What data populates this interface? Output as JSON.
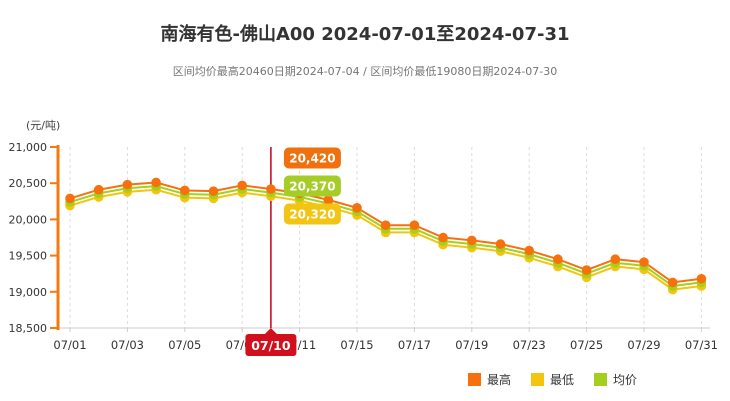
{
  "title": "南海有色-佛山A00 2024-07-01至2024-07-31",
  "subtitle": "区间均价最高20460日期2024-07-04 / 区间均价最低19080日期2024-07-30",
  "y_axis": {
    "unit_label": "(元/吨)",
    "tick_labels": [
      "21,000",
      "20,500",
      "20,000",
      "19,500",
      "19,000",
      "18,500"
    ]
  },
  "colors": {
    "title_text": "#333333",
    "subtitle_text": "#757575",
    "axis_orange": "#f5790f",
    "gridline": "#dcdcdc",
    "x_axis_line": "#cccccc",
    "tick_text": "#333333",
    "reference_line_red": "#c40019",
    "date_badge_red": "#d2101d",
    "series_high": "#f7700e",
    "series_low": "#f3c50f",
    "series_avg": "#a4cf1e"
  },
  "chart_data": {
    "type": "line",
    "title": "南海有色-佛山A00 2024-07-01至2024-07-31",
    "ylabel": "(元/吨)",
    "ylim": [
      18500,
      21000
    ],
    "ytick_step": 500,
    "grid": "vertical-dashed",
    "legend_position": "bottom-right",
    "x": [
      "07/01",
      "07/02",
      "07/03",
      "07/04",
      "07/05",
      "07/08",
      "07/09",
      "07/10",
      "07/11",
      "07/12",
      "07/15",
      "07/16",
      "07/17",
      "07/18",
      "07/19",
      "07/22",
      "07/23",
      "07/24",
      "07/25",
      "07/26",
      "07/29",
      "07/30",
      "07/31"
    ],
    "xticks": [
      {
        "index": 0,
        "label": "07/01"
      },
      {
        "index": 2,
        "label": "07/03"
      },
      {
        "index": 4,
        "label": "07/05"
      },
      {
        "index": 6,
        "label": "07/09"
      },
      {
        "index": 8,
        "label": "07/11"
      },
      {
        "index": 10,
        "label": "07/15"
      },
      {
        "index": 12,
        "label": "07/17"
      },
      {
        "index": 14,
        "label": "07/19"
      },
      {
        "index": 16,
        "label": "07/23"
      },
      {
        "index": 18,
        "label": "07/25"
      },
      {
        "index": 20,
        "label": "07/29"
      },
      {
        "index": 22,
        "label": "07/31"
      }
    ],
    "series": [
      {
        "key": "low",
        "name": "最低",
        "color": "#f3c50f",
        "values": [
          20190,
          20310,
          20380,
          20410,
          20300,
          20290,
          20370,
          20320,
          20260,
          20170,
          20060,
          19820,
          19820,
          19650,
          19610,
          19560,
          19470,
          19350,
          19200,
          19350,
          19310,
          19030,
          19080
        ]
      },
      {
        "key": "avg",
        "name": "均价",
        "color": "#a4cf1e",
        "values": [
          20240,
          20360,
          20430,
          20460,
          20350,
          20340,
          20420,
          20370,
          20310,
          20220,
          20110,
          19870,
          19870,
          19700,
          19660,
          19610,
          19520,
          19400,
          19250,
          19400,
          19360,
          19080,
          19130
        ]
      },
      {
        "key": "high",
        "name": "最高",
        "color": "#f7700e",
        "values": [
          20290,
          20410,
          20480,
          20510,
          20400,
          20390,
          20470,
          20420,
          20360,
          20270,
          20160,
          19920,
          19920,
          19750,
          19710,
          19660,
          19570,
          19450,
          19300,
          19450,
          19410,
          19130,
          19180
        ]
      }
    ],
    "marked_date": {
      "index": 7,
      "label": "07/10"
    },
    "tooltip": {
      "items": [
        {
          "key": "high",
          "label": "20,420",
          "color": "#f0700d"
        },
        {
          "key": "avg",
          "label": "20,370",
          "color": "#a6cc28"
        },
        {
          "key": "low",
          "label": "20,320",
          "color": "#f2c414"
        }
      ]
    },
    "annotations": [
      "区间均价最高20460日期2024-07-04",
      "区间均价最低19080日期2024-07-30"
    ]
  },
  "legend": {
    "items": [
      {
        "key": "high",
        "label": "最高",
        "color": "#f7700e"
      },
      {
        "key": "low",
        "label": "最低",
        "color": "#f3c50f"
      },
      {
        "key": "avg",
        "label": "均价",
        "color": "#a4cf1e"
      }
    ]
  }
}
